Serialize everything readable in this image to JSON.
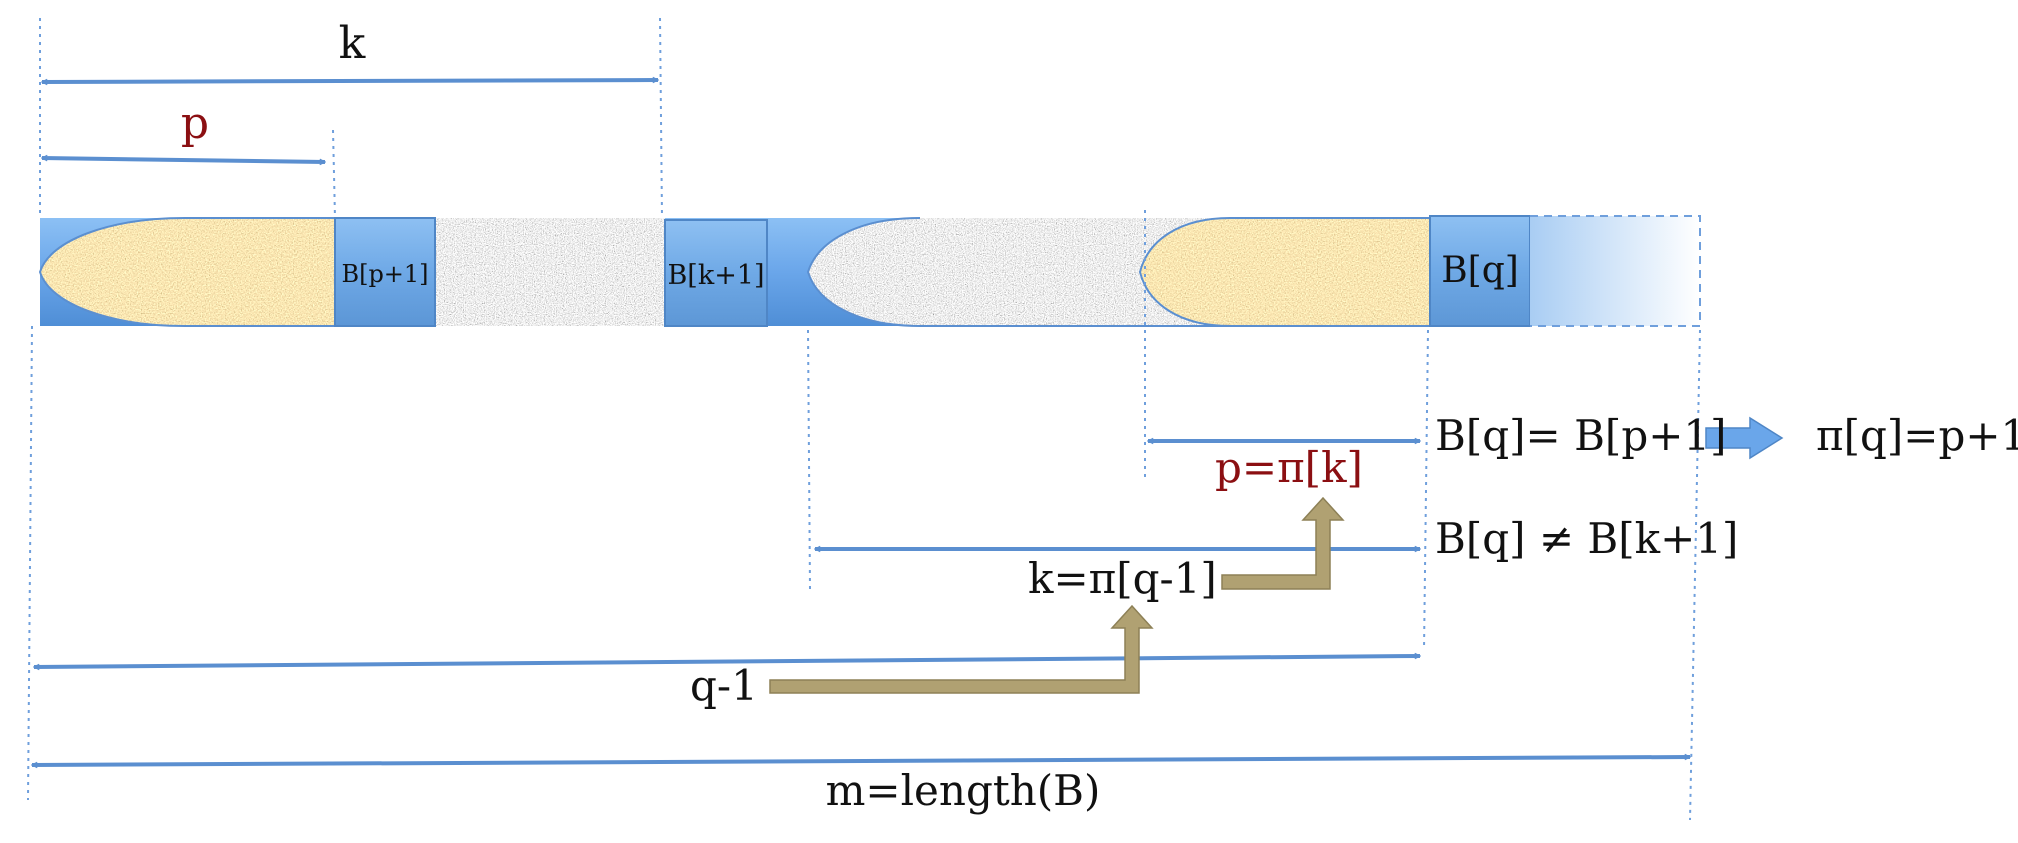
{
  "labels": {
    "k": "k",
    "p": "p",
    "cell_p1": "B[p+1]",
    "cell_k1": "B[k+1]",
    "cell_q": "B[q]",
    "eq_match": "B[q]= B[p+1]",
    "result": "π[q]=p+1",
    "p_def": "p=π[k]",
    "neq": "B[q] ≠ B[k+1]",
    "k_def": "k=π[q-1]",
    "q_minus_1": "q-1",
    "m_def": "m=length(B)"
  },
  "colors": {
    "arrow": "#5b8fd0",
    "dotted": "#6f9fdc",
    "bar": "#6aa6ea",
    "cell": "#79aee8",
    "accent_red": "#8b0f12",
    "arrow_gold": "#a8976a"
  }
}
